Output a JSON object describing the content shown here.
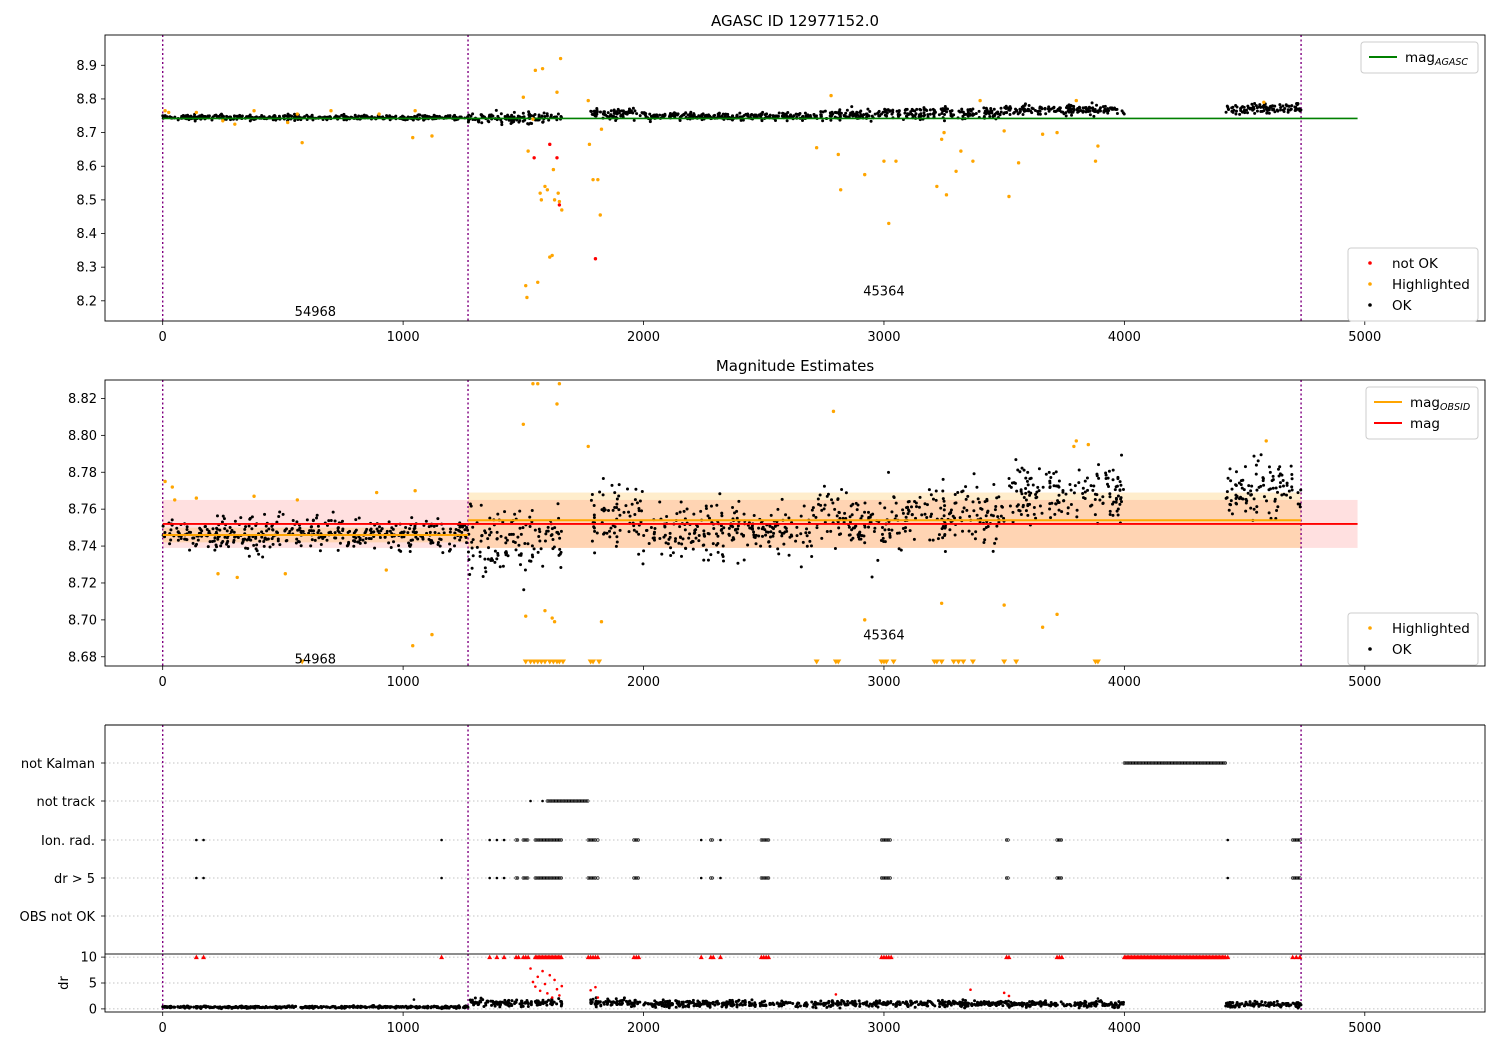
{
  "chart_data": [
    {
      "type": "scatter",
      "title": "AGASC ID 12977152.0",
      "xlim": [
        -240,
        5500
      ],
      "ylim": [
        8.14,
        8.99
      ],
      "x_ticks": [
        "0",
        "1000",
        "2000",
        "3000",
        "4000",
        "5000"
      ],
      "y_ticks": [
        "8.2",
        "8.3",
        "8.4",
        "8.5",
        "8.6",
        "8.7",
        "8.8",
        "8.9"
      ],
      "obsid_boundaries": [
        0,
        1270,
        4735
      ],
      "obsid_labels": [
        {
          "text": "54968",
          "x": 635,
          "y": 8.17
        },
        {
          "text": "45364",
          "x": 3000,
          "y": 8.23
        }
      ],
      "reference_lines": [
        {
          "name": "mag_AGASC",
          "y": 8.742,
          "x_range": [
            0,
            4970
          ],
          "color": "#008000"
        }
      ],
      "ok_segments": [
        {
          "x": [
            0,
            1270
          ],
          "y": 8.745,
          "spread": 0.005
        },
        {
          "x": [
            1270,
            1660
          ],
          "y": 8.743,
          "spread": 0.012
        },
        {
          "x": [
            1780,
            2000
          ],
          "y": 8.755,
          "spread": 0.011
        },
        {
          "x": [
            2000,
            2700
          ],
          "y": 8.748,
          "spread": 0.008
        },
        {
          "x": [
            2700,
            3000
          ],
          "y": 8.752,
          "spread": 0.012
        },
        {
          "x": [
            3000,
            3500
          ],
          "y": 8.758,
          "spread": 0.012
        },
        {
          "x": [
            3500,
            4000
          ],
          "y": 8.768,
          "spread": 0.01
        },
        {
          "x": [
            4420,
            4735
          ],
          "y": 8.77,
          "spread": 0.01
        }
      ],
      "highlighted_points": [
        [
          10,
          8.765
        ],
        [
          25,
          8.76
        ],
        [
          140,
          8.76
        ],
        [
          250,
          8.735
        ],
        [
          300,
          8.725
        ],
        [
          380,
          8.765
        ],
        [
          520,
          8.73
        ],
        [
          560,
          8.755
        ],
        [
          580,
          8.67
        ],
        [
          700,
          8.765
        ],
        [
          900,
          8.755
        ],
        [
          1040,
          8.685
        ],
        [
          1050,
          8.765
        ],
        [
          1120,
          8.69
        ],
        [
          1500,
          8.805
        ],
        [
          1510,
          8.245
        ],
        [
          1515,
          8.21
        ],
        [
          1520,
          8.645
        ],
        [
          1540,
          8.74
        ],
        [
          1550,
          8.885
        ],
        [
          1560,
          8.255
        ],
        [
          1570,
          8.52
        ],
        [
          1575,
          8.5
        ],
        [
          1580,
          8.89
        ],
        [
          1590,
          8.54
        ],
        [
          1600,
          8.53
        ],
        [
          1610,
          8.33
        ],
        [
          1620,
          8.335
        ],
        [
          1625,
          8.59
        ],
        [
          1630,
          8.5
        ],
        [
          1640,
          8.82
        ],
        [
          1645,
          8.52
        ],
        [
          1650,
          8.495
        ],
        [
          1655,
          8.92
        ],
        [
          1660,
          8.47
        ],
        [
          1770,
          8.795
        ],
        [
          1775,
          8.665
        ],
        [
          1790,
          8.56
        ],
        [
          1810,
          8.56
        ],
        [
          1820,
          8.455
        ],
        [
          1825,
          8.71
        ],
        [
          2720,
          8.655
        ],
        [
          2780,
          8.81
        ],
        [
          2810,
          8.635
        ],
        [
          2820,
          8.53
        ],
        [
          2920,
          8.575
        ],
        [
          3000,
          8.615
        ],
        [
          3020,
          8.43
        ],
        [
          3050,
          8.615
        ],
        [
          3220,
          8.54
        ],
        [
          3240,
          8.68
        ],
        [
          3250,
          8.7
        ],
        [
          3260,
          8.515
        ],
        [
          3300,
          8.585
        ],
        [
          3320,
          8.645
        ],
        [
          3370,
          8.615
        ],
        [
          3400,
          8.795
        ],
        [
          3500,
          8.705
        ],
        [
          3520,
          8.51
        ],
        [
          3560,
          8.61
        ],
        [
          3660,
          8.695
        ],
        [
          3720,
          8.7
        ],
        [
          3800,
          8.795
        ],
        [
          3880,
          8.615
        ],
        [
          3890,
          8.66
        ],
        [
          4580,
          8.79
        ]
      ],
      "not_ok_points": [
        [
          1545,
          8.625
        ],
        [
          1610,
          8.665
        ],
        [
          1640,
          8.625
        ],
        [
          1650,
          8.485
        ],
        [
          1800,
          8.325
        ]
      ],
      "legend": [
        "not OK",
        "Highlighted",
        "OK"
      ],
      "legend_top": [
        "mag_AGASC"
      ]
    },
    {
      "type": "scatter",
      "title": "Magnitude Estimates",
      "xlim": [
        -240,
        5500
      ],
      "ylim": [
        8.675,
        8.83
      ],
      "x_ticks": [
        "0",
        "1000",
        "2000",
        "3000",
        "4000",
        "5000"
      ],
      "y_ticks": [
        "8.68",
        "8.70",
        "8.72",
        "8.74",
        "8.76",
        "8.78",
        "8.80",
        "8.82"
      ],
      "obsid_boundaries": [
        0,
        1270,
        4735
      ],
      "obsid_labels": [
        {
          "text": "54968",
          "x": 635,
          "y": 8.679
        },
        {
          "text": "45364",
          "x": 3000,
          "y": 8.692
        }
      ],
      "mag_line": {
        "name": "mag",
        "y": 8.752,
        "band": [
          8.739,
          8.765
        ],
        "x_range": [
          0,
          4970
        ],
        "color": "#ff0000"
      },
      "mag_obsid_lines": [
        {
          "name": "mag_OBSID",
          "y": 8.746,
          "band": [
            8.742,
            8.75
          ],
          "x_range": [
            0,
            1270
          ],
          "color": "#ffa500"
        },
        {
          "name": "mag_OBSID",
          "y": 8.754,
          "band": [
            8.739,
            8.769
          ],
          "x_range": [
            1270,
            4735
          ],
          "color": "#ffa500"
        }
      ],
      "ok_segments": [
        {
          "x": [
            0,
            1270
          ],
          "y": 8.746,
          "spread": 0.006
        },
        {
          "x": [
            1270,
            1660
          ],
          "y": 8.742,
          "spread": 0.012
        },
        {
          "x": [
            1780,
            2000
          ],
          "y": 8.755,
          "spread": 0.012
        },
        {
          "x": [
            2000,
            2700
          ],
          "y": 8.747,
          "spread": 0.01
        },
        {
          "x": [
            2700,
            3000
          ],
          "y": 8.752,
          "spread": 0.012
        },
        {
          "x": [
            3000,
            3500
          ],
          "y": 8.757,
          "spread": 0.012
        },
        {
          "x": [
            3500,
            4000
          ],
          "y": 8.768,
          "spread": 0.01
        },
        {
          "x": [
            4420,
            4735
          ],
          "y": 8.77,
          "spread": 0.01
        }
      ],
      "highlighted_points": [
        [
          10,
          8.775
        ],
        [
          40,
          8.772
        ],
        [
          50,
          8.765
        ],
        [
          140,
          8.766
        ],
        [
          230,
          8.725
        ],
        [
          310,
          8.723
        ],
        [
          380,
          8.767
        ],
        [
          510,
          8.725
        ],
        [
          560,
          8.765
        ],
        [
          890,
          8.769
        ],
        [
          930,
          8.727
        ],
        [
          1040,
          8.686
        ],
        [
          1050,
          8.77
        ],
        [
          1120,
          8.692
        ],
        [
          1500,
          8.806
        ],
        [
          1510,
          8.702
        ],
        [
          1540,
          8.828
        ],
        [
          1560,
          8.828
        ],
        [
          1590,
          8.705
        ],
        [
          1620,
          8.701
        ],
        [
          1630,
          8.699
        ],
        [
          1640,
          8.817
        ],
        [
          1650,
          8.828
        ],
        [
          1770,
          8.794
        ],
        [
          1825,
          8.699
        ],
        [
          2790,
          8.813
        ],
        [
          2920,
          8.7
        ],
        [
          3240,
          8.709
        ],
        [
          3500,
          8.708
        ],
        [
          3660,
          8.696
        ],
        [
          3720,
          8.703
        ],
        [
          3790,
          8.794
        ],
        [
          3800,
          8.797
        ],
        [
          3850,
          8.795
        ],
        [
          4590,
          8.797
        ]
      ],
      "clipped_low_x": [
        580,
        1510,
        1530,
        1545,
        1560,
        1575,
        1590,
        1610,
        1625,
        1640,
        1650,
        1665,
        1780,
        1790,
        1815,
        2720,
        2800,
        2810,
        2990,
        3000,
        3010,
        3040,
        3210,
        3220,
        3240,
        3290,
        3310,
        3330,
        3370,
        3500,
        3550,
        3880,
        3890
      ],
      "legend": [
        "Highlighted",
        "OK"
      ],
      "legend_top": [
        "mag_OBSID",
        "mag"
      ]
    },
    {
      "type": "scatter",
      "title": "",
      "xlim": [
        -240,
        5500
      ],
      "categories": [
        "not Kalman",
        "not track",
        "Ion. rad.",
        "dr > 5",
        "OBS not OK"
      ],
      "obsid_boundaries": [
        0,
        1270,
        4735
      ],
      "flags": {
        "not Kalman": [
          [
            4000,
            4420
          ]
        ],
        "not track": [
          [
            1530,
            1530
          ],
          [
            1580,
            1580
          ],
          [
            1600,
            1770
          ]
        ],
        "Ion. rad.": [
          [
            140,
            140
          ],
          [
            170,
            170
          ],
          [
            1160,
            1160
          ],
          [
            1360,
            1360
          ],
          [
            1390,
            1390
          ],
          [
            1420,
            1420
          ],
          [
            1470,
            1480
          ],
          [
            1500,
            1520
          ],
          [
            1550,
            1660
          ],
          [
            1770,
            1800
          ],
          [
            1810,
            1815
          ],
          [
            1960,
            1980
          ],
          [
            2240,
            2240
          ],
          [
            2280,
            2290
          ],
          [
            2320,
            2320
          ],
          [
            2490,
            2520
          ],
          [
            2990,
            3030
          ],
          [
            3510,
            3520
          ],
          [
            3720,
            3740
          ],
          [
            4430,
            4430
          ],
          [
            4700,
            4730
          ]
        ],
        "dr > 5": [
          [
            140,
            140
          ],
          [
            170,
            170
          ],
          [
            1160,
            1160
          ],
          [
            1360,
            1360
          ],
          [
            1390,
            1390
          ],
          [
            1420,
            1420
          ],
          [
            1470,
            1480
          ],
          [
            1500,
            1520
          ],
          [
            1550,
            1660
          ],
          [
            1770,
            1800
          ],
          [
            1810,
            1815
          ],
          [
            1960,
            1980
          ],
          [
            2240,
            2240
          ],
          [
            2280,
            2290
          ],
          [
            2320,
            2320
          ],
          [
            2490,
            2520
          ],
          [
            2990,
            3030
          ],
          [
            3510,
            3520
          ],
          [
            3720,
            3740
          ],
          [
            4430,
            4430
          ],
          [
            4700,
            4730
          ]
        ],
        "OBS not OK": []
      }
    },
    {
      "type": "scatter",
      "title": "",
      "ylabel": "dr",
      "xlim": [
        -240,
        5500
      ],
      "ylim": [
        -0.6,
        10.6
      ],
      "x_ticks": [
        "0",
        "1000",
        "2000",
        "3000",
        "4000",
        "5000"
      ],
      "y_ticks": [
        "0",
        "5",
        "10"
      ],
      "obsid_boundaries": [
        0,
        1270,
        4735
      ],
      "ok_segments": [
        {
          "x": [
            0,
            1270
          ],
          "y": 0.35,
          "spread": 0.15
        },
        {
          "x": [
            1270,
            1660
          ],
          "y": 1.2,
          "spread": 0.5
        },
        {
          "x": [
            1780,
            2000
          ],
          "y": 1.2,
          "spread": 0.5
        },
        {
          "x": [
            2000,
            2700
          ],
          "y": 1.0,
          "spread": 0.4
        },
        {
          "x": [
            2700,
            3000
          ],
          "y": 1.0,
          "spread": 0.4
        },
        {
          "x": [
            3000,
            3500
          ],
          "y": 1.0,
          "spread": 0.4
        },
        {
          "x": [
            3500,
            4000
          ],
          "y": 0.9,
          "spread": 0.4
        },
        {
          "x": [
            4420,
            4735
          ],
          "y": 0.9,
          "spread": 0.4
        }
      ],
      "clipped_high_x": [
        140,
        170,
        1160,
        1360,
        1390,
        1420,
        1470,
        1480,
        1500,
        1510,
        1520,
        1770,
        1780,
        1790,
        1800,
        1810,
        1960,
        1970,
        1980,
        2240,
        2280,
        2290,
        2320,
        2490,
        2500,
        2510,
        2520,
        2990,
        3000,
        3010,
        3020,
        3030,
        3510,
        3520,
        3720,
        3730,
        3740,
        4430,
        4700,
        4715,
        4730
      ],
      "clipped_high_ranges": [
        [
          1550,
          1660
        ],
        [
          4000,
          4420
        ]
      ],
      "red_points": [
        [
          1530,
          7.8
        ],
        [
          1540,
          5.2
        ],
        [
          1550,
          4.3
        ],
        [
          1560,
          6.2
        ],
        [
          1570,
          3.5
        ],
        [
          1580,
          7.3
        ],
        [
          1590,
          4.8
        ],
        [
          1600,
          3.0
        ],
        [
          1610,
          6.5
        ],
        [
          1620,
          2.2
        ],
        [
          1630,
          5.6
        ],
        [
          1640,
          3.8
        ],
        [
          1650,
          2.6
        ],
        [
          1660,
          4.4
        ],
        [
          1780,
          3.6
        ],
        [
          1800,
          4.2
        ],
        [
          1810,
          2.2
        ],
        [
          2800,
          2.8
        ],
        [
          3360,
          3.7
        ],
        [
          3500,
          3.1
        ],
        [
          3520,
          2.5
        ]
      ],
      "black_outliers": [
        [
          1045,
          1.8
        ],
        [
          3890,
          2.0
        ]
      ]
    }
  ],
  "legends": {
    "top_upper": [
      {
        "label": "mag",
        "sub": "AGASC",
        "color": "#008000"
      }
    ],
    "top_lower": [
      {
        "label": "not OK",
        "color": "#ff0000"
      },
      {
        "label": "Highlighted",
        "color": "#ffa500"
      },
      {
        "label": "OK",
        "color": "#000000"
      }
    ],
    "mid_upper": [
      {
        "label": "mag",
        "sub": "OBSID",
        "color": "#ffa500"
      },
      {
        "label": "mag",
        "sub": "",
        "color": "#ff0000"
      }
    ],
    "mid_lower": [
      {
        "label": "Highlighted",
        "color": "#ffa500"
      },
      {
        "label": "OK",
        "color": "#000000"
      }
    ]
  },
  "colors": {
    "ok": "#000000",
    "highlighted": "#ffa500",
    "not_ok": "#ff0000",
    "boundary": "#800080",
    "grid": "#b0b0b0"
  }
}
